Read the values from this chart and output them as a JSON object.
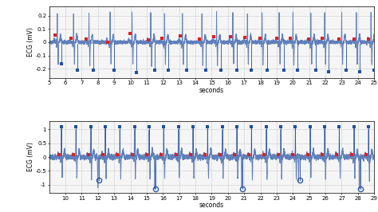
{
  "panel1": {
    "xlim": [
      5,
      25
    ],
    "ylim": [
      -0.27,
      0.27
    ],
    "yticks": [
      -0.2,
      -0.1,
      0.0,
      0.1,
      0.2
    ],
    "xticks": [
      5,
      6,
      7,
      8,
      9,
      10,
      11,
      12,
      13,
      14,
      15,
      16,
      17,
      18,
      19,
      20,
      21,
      22,
      23,
      24,
      25
    ],
    "ylabel": "ECG (mV)",
    "xlabel": "seconds",
    "beat_times": [
      5.5,
      6.5,
      7.45,
      8.75,
      10.1,
      11.25,
      12.1,
      13.2,
      14.4,
      15.3,
      16.3,
      17.2,
      18.1,
      19.15,
      20.0,
      21.1,
      21.95,
      23.0,
      23.9,
      24.8
    ],
    "red_markers_x": [
      5.35,
      6.35,
      7.3,
      8.6,
      9.95,
      11.1,
      11.95,
      13.05,
      14.25,
      15.15,
      16.15,
      17.05,
      17.95,
      19.0,
      19.85,
      20.95,
      21.8,
      22.85,
      23.75,
      24.65
    ],
    "red_markers_y": [
      0.055,
      0.03,
      0.025,
      0.0,
      0.065,
      0.02,
      0.03,
      0.05,
      0.025,
      0.04,
      0.04,
      0.035,
      0.03,
      0.03,
      0.03,
      0.025,
      0.03,
      0.025,
      0.025,
      0.025
    ],
    "blue_markers_x": [
      5.75,
      6.75,
      7.7,
      9.0,
      10.35,
      11.5,
      12.35,
      13.45,
      14.65,
      15.55,
      16.55,
      17.45,
      18.4,
      19.45,
      20.3,
      21.4,
      22.2,
      23.25,
      24.1,
      25.0
    ],
    "blue_markers_y": [
      -0.16,
      -0.21,
      -0.21,
      -0.21,
      -0.23,
      -0.21,
      -0.21,
      -0.21,
      -0.21,
      -0.21,
      -0.21,
      -0.21,
      -0.21,
      -0.21,
      -0.21,
      -0.21,
      -0.22,
      -0.21,
      -0.22,
      -0.21
    ],
    "amplitude": 0.22,
    "noise": 0.006
  },
  "panel2": {
    "xlim": [
      9,
      29
    ],
    "ylim": [
      -1.3,
      1.3
    ],
    "yticks": [
      -1.0,
      -0.5,
      0.0,
      0.5,
      1.0
    ],
    "xticks": [
      10,
      11,
      12,
      13,
      14,
      15,
      16,
      17,
      18,
      19,
      20,
      21,
      22,
      23,
      24,
      25,
      26,
      27,
      28,
      29
    ],
    "ylabel": "ECG (mV)",
    "xlabel": "seconds",
    "beat_times": [
      9.75,
      10.65,
      11.55,
      12.45,
      13.35,
      14.25,
      15.15,
      16.05,
      16.95,
      17.85,
      18.75,
      19.65,
      20.55,
      21.45,
      22.35,
      23.25,
      24.15,
      25.05,
      25.95,
      26.85,
      27.75,
      28.65
    ],
    "ectopic_times": [
      12.0,
      15.5,
      20.85,
      24.35,
      28.1
    ],
    "red_markers_x": [
      9.6,
      10.5,
      11.4,
      12.3,
      13.2,
      14.1,
      15.0,
      15.9,
      16.8,
      17.7,
      18.6,
      19.5,
      20.4,
      21.3,
      22.2,
      23.1,
      24.0,
      24.9,
      25.8,
      26.7,
      27.6,
      28.5
    ],
    "red_markers_y": [
      0.1,
      0.1,
      0.1,
      0.08,
      0.08,
      0.08,
      0.08,
      0.08,
      0.08,
      0.08,
      0.08,
      0.08,
      0.08,
      0.08,
      0.08,
      0.08,
      0.08,
      0.08,
      0.08,
      0.08,
      0.08,
      0.08
    ],
    "blue_filled_x": [
      9.75,
      10.65,
      11.55,
      12.45,
      13.35,
      14.25,
      15.15,
      16.05,
      16.95,
      17.85,
      18.75,
      19.65,
      20.55,
      21.45,
      22.35,
      23.25,
      24.15,
      25.05,
      25.95,
      26.85,
      27.75,
      28.65
    ],
    "blue_filled_y": [
      1.1,
      1.1,
      1.1,
      1.1,
      1.1,
      1.1,
      1.1,
      1.1,
      1.1,
      1.1,
      1.1,
      1.1,
      1.1,
      1.1,
      1.1,
      1.1,
      1.1,
      1.1,
      1.1,
      1.1,
      1.1,
      1.1
    ],
    "blue_open_x": [
      12.05,
      15.55,
      20.9,
      24.4,
      28.15
    ],
    "blue_open_y": [
      -0.85,
      -1.15,
      -1.15,
      -0.85,
      -1.15
    ],
    "amplitude": 1.0,
    "noise": 0.04
  },
  "ecg_color": "#6080bb",
  "red_color": "#dd2020",
  "blue_color": "#2050a0",
  "bg_color": "#f5f5f5",
  "grid_color": "#cccccc"
}
